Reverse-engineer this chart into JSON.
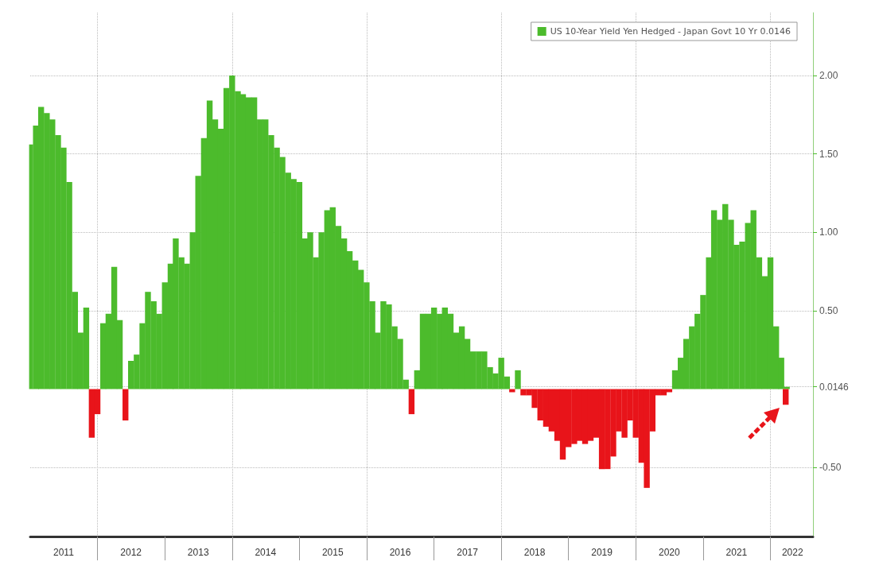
{
  "chart_data": {
    "type": "bar",
    "x": [
      "2011-01",
      "2011-02",
      "2011-03",
      "2011-04",
      "2011-05",
      "2011-06",
      "2011-07",
      "2011-08",
      "2011-09",
      "2011-10",
      "2011-11",
      "2011-12",
      "2012-01",
      "2012-02",
      "2012-03",
      "2012-04",
      "2012-05",
      "2012-06",
      "2012-07",
      "2012-08",
      "2012-09",
      "2012-10",
      "2012-11",
      "2012-12",
      "2013-01",
      "2013-02",
      "2013-03",
      "2013-04",
      "2013-05",
      "2013-06",
      "2013-07",
      "2013-08",
      "2013-09",
      "2013-10",
      "2013-11",
      "2013-12",
      "2014-01",
      "2014-02",
      "2014-03",
      "2014-04",
      "2014-05",
      "2014-06",
      "2014-07",
      "2014-08",
      "2014-09",
      "2014-10",
      "2014-11",
      "2014-12",
      "2015-01",
      "2015-02",
      "2015-03",
      "2015-04",
      "2015-05",
      "2015-06",
      "2015-07",
      "2015-08",
      "2015-09",
      "2015-10",
      "2015-11",
      "2015-12",
      "2016-01",
      "2016-02",
      "2016-03",
      "2016-04",
      "2016-05",
      "2016-06",
      "2016-07",
      "2016-08",
      "2016-09",
      "2016-10",
      "2016-11",
      "2016-12",
      "2017-01",
      "2017-02",
      "2017-03",
      "2017-04",
      "2017-05",
      "2017-06",
      "2017-07",
      "2017-08",
      "2017-09",
      "2017-10",
      "2017-11",
      "2017-12",
      "2018-01",
      "2018-02",
      "2018-03",
      "2018-04",
      "2018-05",
      "2018-06",
      "2018-07",
      "2018-08",
      "2018-09",
      "2018-10",
      "2018-11",
      "2018-12",
      "2019-01",
      "2019-02",
      "2019-03",
      "2019-04",
      "2019-05",
      "2019-06",
      "2019-07",
      "2019-08",
      "2019-09",
      "2019-10",
      "2019-11",
      "2019-12",
      "2020-01",
      "2020-02",
      "2020-03",
      "2020-04",
      "2020-05",
      "2020-06",
      "2020-07",
      "2020-08",
      "2020-09",
      "2020-10",
      "2020-11",
      "2020-12",
      "2021-01",
      "2021-02",
      "2021-03",
      "2021-04",
      "2021-05",
      "2021-06",
      "2021-07",
      "2021-08",
      "2021-09",
      "2021-10",
      "2021-11",
      "2021-12",
      "2022-01",
      "2022-02",
      "2022-03",
      "2022-03-25",
      "2022-03-31"
    ],
    "series": [
      {
        "name": "US 10-Year Yield Yen Hedged - Japan Govt 10 Yr 0.0146",
        "color": "#4cbb2c",
        "values": [
          1.56,
          1.68,
          1.8,
          1.76,
          1.72,
          1.62,
          1.54,
          1.32,
          0.62,
          0.36,
          0.52,
          null,
          null,
          0.42,
          0.48,
          0.78,
          0.44,
          null,
          0.18,
          0.22,
          0.42,
          0.62,
          0.56,
          0.48,
          0.68,
          0.8,
          0.96,
          0.84,
          0.8,
          1.0,
          1.36,
          1.6,
          1.84,
          1.72,
          1.66,
          1.92,
          2.0,
          1.9,
          1.88,
          1.86,
          1.86,
          1.72,
          1.72,
          1.62,
          1.54,
          1.48,
          1.38,
          1.34,
          1.32,
          0.96,
          1.0,
          0.84,
          1.0,
          1.14,
          1.16,
          1.04,
          0.96,
          0.88,
          0.82,
          0.76,
          0.68,
          0.56,
          0.36,
          0.56,
          0.54,
          0.4,
          0.32,
          0.06,
          null,
          0.12,
          0.48,
          0.48,
          0.52,
          0.48,
          0.52,
          0.48,
          0.36,
          0.4,
          0.32,
          0.24,
          0.24,
          0.24,
          0.14,
          0.1,
          0.2,
          0.08,
          null,
          0.12,
          null,
          null,
          null,
          null,
          null,
          null,
          null,
          null,
          null,
          null,
          null,
          null,
          null,
          null,
          null,
          null,
          null,
          null,
          null,
          null,
          null,
          null,
          null,
          null,
          null,
          null,
          null,
          0.12,
          0.2,
          0.32,
          0.4,
          0.48,
          0.6,
          0.84,
          1.14,
          1.08,
          1.18,
          1.08,
          0.92,
          0.94,
          1.06,
          1.14,
          0.84,
          0.72,
          0.84,
          0.4,
          0.2,
          null,
          0.0146
        ]
      },
      {
        "color": "#e8141a",
        "values": [
          null,
          null,
          null,
          null,
          null,
          null,
          null,
          null,
          null,
          null,
          null,
          -0.31,
          -0.16,
          null,
          null,
          null,
          null,
          -0.2,
          null,
          null,
          null,
          null,
          null,
          null,
          null,
          null,
          null,
          null,
          null,
          null,
          null,
          null,
          null,
          null,
          null,
          null,
          null,
          null,
          null,
          null,
          null,
          null,
          null,
          null,
          null,
          null,
          null,
          null,
          null,
          null,
          null,
          null,
          null,
          null,
          null,
          null,
          null,
          null,
          null,
          null,
          null,
          null,
          null,
          null,
          null,
          null,
          null,
          null,
          -0.16,
          null,
          null,
          null,
          null,
          null,
          null,
          null,
          null,
          null,
          null,
          null,
          null,
          null,
          null,
          null,
          null,
          null,
          -0.02,
          null,
          -0.04,
          -0.04,
          -0.12,
          -0.2,
          -0.24,
          -0.27,
          -0.33,
          -0.45,
          -0.37,
          -0.35,
          -0.33,
          -0.35,
          -0.33,
          -0.31,
          -0.51,
          -0.51,
          -0.43,
          -0.27,
          -0.31,
          -0.2,
          -0.31,
          -0.47,
          -0.63,
          -0.27,
          -0.04,
          -0.04,
          -0.02,
          null,
          null,
          null,
          null,
          null,
          null,
          null,
          null,
          null,
          null,
          null,
          null,
          null,
          null,
          null,
          null,
          null,
          null,
          null,
          null,
          -0.1,
          null
        ]
      }
    ],
    "xlim": [
      "2011-01-01",
      "2022-08-20"
    ],
    "xticks": [
      {
        "value": "2011-07-01",
        "label": "2011"
      },
      {
        "value": "2012-07-01",
        "label": "2012"
      },
      {
        "value": "2013-07-01",
        "label": "2013"
      },
      {
        "value": "2014-07-01",
        "label": "2014"
      },
      {
        "value": "2015-07-01",
        "label": "2015"
      },
      {
        "value": "2016-07-01",
        "label": "2016"
      },
      {
        "value": "2017-07-01",
        "label": "2017"
      },
      {
        "value": "2018-07-01",
        "label": "2018"
      },
      {
        "value": "2019-07-01",
        "label": "2019"
      },
      {
        "value": "2020-07-01",
        "label": "2020"
      },
      {
        "value": "2021-07-01",
        "label": "2021"
      },
      {
        "value": "2022-05-01",
        "label": "2022"
      }
    ],
    "ylim": [
      -0.94,
      2.4
    ],
    "yticks": [
      {
        "value": -0.5,
        "label": "-0.50"
      },
      {
        "value": 0.0146,
        "label": "0.0146"
      },
      {
        "value": 0.5,
        "label": "0.50"
      },
      {
        "value": 1.0,
        "label": "1.00"
      },
      {
        "value": 1.5,
        "label": "1.50"
      },
      {
        "value": 2.0,
        "label": "2.00"
      }
    ],
    "grid": true,
    "legend": "top right"
  }
}
